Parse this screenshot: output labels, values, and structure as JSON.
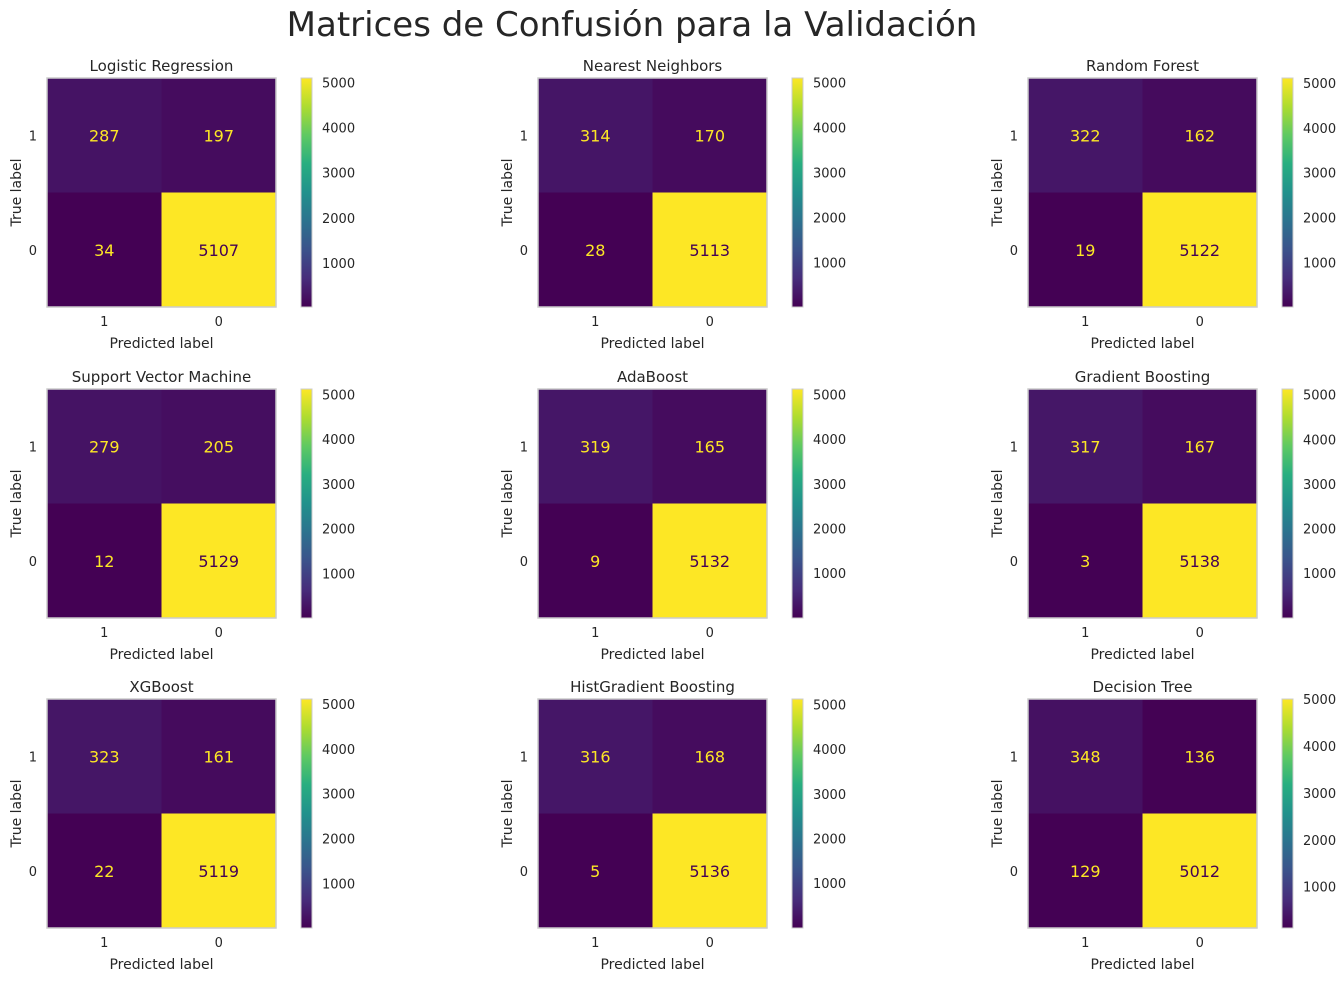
{
  "figure": {
    "title": "Matrices de Confusión para la Validación"
  },
  "chart_data": [
    {
      "type": "heatmap",
      "title": "Logistic Regression",
      "xlabel": "Predicted label",
      "ylabel": "True label",
      "x_ticks": [
        "1",
        "0"
      ],
      "y_ticks": [
        "1",
        "0"
      ],
      "values": [
        [
          287,
          197
        ],
        [
          34,
          5107
        ]
      ],
      "colormap": "viridis",
      "colorbar_ticks": [
        1000,
        2000,
        3000,
        4000,
        5000
      ],
      "vmin": 34,
      "vmax": 5107
    },
    {
      "type": "heatmap",
      "title": "Nearest Neighbors",
      "xlabel": "Predicted label",
      "ylabel": "True label",
      "x_ticks": [
        "1",
        "0"
      ],
      "y_ticks": [
        "1",
        "0"
      ],
      "values": [
        [
          314,
          170
        ],
        [
          28,
          5113
        ]
      ],
      "colormap": "viridis",
      "colorbar_ticks": [
        1000,
        2000,
        3000,
        4000,
        5000
      ],
      "vmin": 28,
      "vmax": 5113
    },
    {
      "type": "heatmap",
      "title": "Random Forest",
      "xlabel": "Predicted label",
      "ylabel": "True label",
      "x_ticks": [
        "1",
        "0"
      ],
      "y_ticks": [
        "1",
        "0"
      ],
      "values": [
        [
          322,
          162
        ],
        [
          19,
          5122
        ]
      ],
      "colormap": "viridis",
      "colorbar_ticks": [
        1000,
        2000,
        3000,
        4000,
        5000
      ],
      "vmin": 19,
      "vmax": 5122
    },
    {
      "type": "heatmap",
      "title": "Support Vector Machine",
      "xlabel": "Predicted label",
      "ylabel": "True label",
      "x_ticks": [
        "1",
        "0"
      ],
      "y_ticks": [
        "1",
        "0"
      ],
      "values": [
        [
          279,
          205
        ],
        [
          12,
          5129
        ]
      ],
      "colormap": "viridis",
      "colorbar_ticks": [
        1000,
        2000,
        3000,
        4000,
        5000
      ],
      "vmin": 12,
      "vmax": 5129
    },
    {
      "type": "heatmap",
      "title": "AdaBoost",
      "xlabel": "Predicted label",
      "ylabel": "True label",
      "x_ticks": [
        "1",
        "0"
      ],
      "y_ticks": [
        "1",
        "0"
      ],
      "values": [
        [
          319,
          165
        ],
        [
          9,
          5132
        ]
      ],
      "colormap": "viridis",
      "colorbar_ticks": [
        1000,
        2000,
        3000,
        4000,
        5000
      ],
      "vmin": 9,
      "vmax": 5132
    },
    {
      "type": "heatmap",
      "title": "Gradient Boosting",
      "xlabel": "Predicted label",
      "ylabel": "True label",
      "x_ticks": [
        "1",
        "0"
      ],
      "y_ticks": [
        "1",
        "0"
      ],
      "values": [
        [
          317,
          167
        ],
        [
          3,
          5138
        ]
      ],
      "colormap": "viridis",
      "colorbar_ticks": [
        1000,
        2000,
        3000,
        4000,
        5000
      ],
      "vmin": 3,
      "vmax": 5138
    },
    {
      "type": "heatmap",
      "title": "XGBoost",
      "xlabel": "Predicted label",
      "ylabel": "True label",
      "x_ticks": [
        "1",
        "0"
      ],
      "y_ticks": [
        "1",
        "0"
      ],
      "values": [
        [
          323,
          161
        ],
        [
          22,
          5119
        ]
      ],
      "colormap": "viridis",
      "colorbar_ticks": [
        1000,
        2000,
        3000,
        4000,
        5000
      ],
      "vmin": 22,
      "vmax": 5119
    },
    {
      "type": "heatmap",
      "title": "HistGradient Boosting",
      "xlabel": "Predicted label",
      "ylabel": "True label",
      "x_ticks": [
        "1",
        "0"
      ],
      "y_ticks": [
        "1",
        "0"
      ],
      "values": [
        [
          316,
          168
        ],
        [
          5,
          5136
        ]
      ],
      "colormap": "viridis",
      "colorbar_ticks": [
        1000,
        2000,
        3000,
        4000,
        5000
      ],
      "vmin": 5,
      "vmax": 5136
    },
    {
      "type": "heatmap",
      "title": "Decision Tree",
      "xlabel": "Predicted label",
      "ylabel": "True label",
      "x_ticks": [
        "1",
        "0"
      ],
      "y_ticks": [
        "1",
        "0"
      ],
      "values": [
        [
          348,
          136
        ],
        [
          129,
          5012
        ]
      ],
      "colormap": "viridis",
      "colorbar_ticks": [
        1000,
        2000,
        3000,
        4000,
        5000
      ],
      "vmin": 129,
      "vmax": 5012
    }
  ]
}
